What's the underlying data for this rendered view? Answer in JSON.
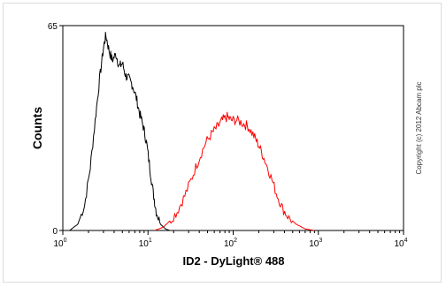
{
  "chart_data": {
    "type": "line",
    "xlabel": "ID2 - DyLight® 488",
    "ylabel": "Counts",
    "x_scale": "log",
    "xlim": [
      1,
      10000
    ],
    "ylim": [
      0,
      65
    ],
    "y_ticks": [
      "0",
      "65"
    ],
    "x_ticks": [
      {
        "base": "10",
        "exp": "0"
      },
      {
        "base": "10",
        "exp": "1"
      },
      {
        "base": "10",
        "exp": "2"
      },
      {
        "base": "10",
        "exp": "3"
      },
      {
        "base": "10",
        "exp": "4"
      }
    ],
    "grid": false,
    "series": [
      {
        "color": "#000000",
        "x": [
          1.2,
          1.5,
          1.8,
          2.1,
          2.4,
          2.7,
          3.0,
          3.2,
          3.5,
          3.8,
          4.2,
          4.6,
          5.0,
          5.5,
          6.0,
          6.6,
          7.3,
          8.0,
          8.8,
          9.6,
          10.5,
          11.5,
          12.5,
          14.0,
          16.0,
          18.0
        ],
        "y": [
          0,
          2,
          8,
          20,
          35,
          48,
          58,
          62,
          57,
          54,
          56,
          52,
          53,
          49,
          48,
          46,
          42,
          37,
          33,
          28,
          20,
          12,
          6,
          2,
          0.5,
          0
        ]
      },
      {
        "color": "#ff0000",
        "x": [
          12,
          15,
          18,
          22,
          27,
          33,
          40,
          48,
          57,
          66,
          75,
          85,
          95,
          110,
          130,
          150,
          175,
          200,
          230,
          270,
          320,
          380,
          450,
          550,
          700,
          900
        ],
        "y": [
          0,
          1,
          3,
          6,
          11,
          17,
          23,
          28,
          31,
          33,
          35,
          36,
          35,
          35,
          34,
          33,
          30,
          27,
          23,
          18,
          12,
          7,
          4,
          2,
          0.5,
          0
        ]
      }
    ]
  },
  "copyright": "Copyright (c) 2012 Abcam plc"
}
